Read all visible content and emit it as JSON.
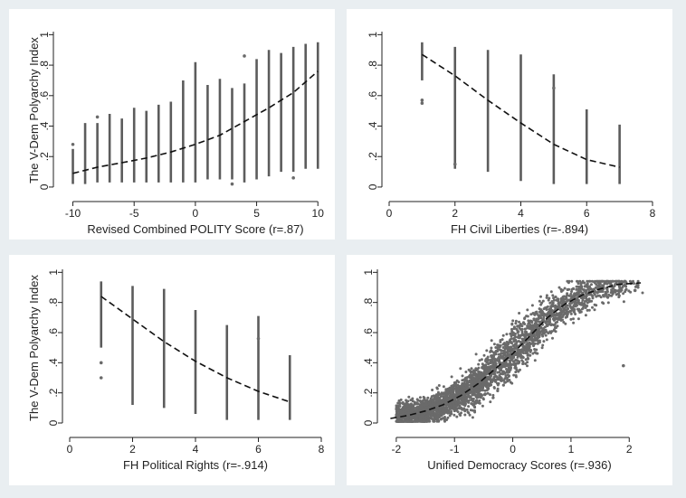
{
  "chart_data": [
    {
      "type": "scatter",
      "id": "polity",
      "xlabel": "Revised Combined POLITY Score (r=.87)",
      "ylabel": "The V-Dem Polyarchy Index",
      "xlim": [
        -11,
        10.5
      ],
      "ylim": [
        -0.03,
        1.02
      ],
      "xticks": [
        -10,
        -5,
        0,
        5,
        10
      ],
      "xtick_labels": [
        "-10",
        "-5",
        "0",
        "5",
        "10"
      ],
      "yticks": [
        0,
        0.2,
        0.4,
        0.6,
        0.8,
        1
      ],
      "ytick_labels": [
        "0",
        ".2",
        ".4",
        ".6",
        ".8",
        "1"
      ],
      "strips": [
        {
          "x": -10,
          "min": 0.02,
          "max": 0.25
        },
        {
          "x": -9,
          "min": 0.02,
          "max": 0.42
        },
        {
          "x": -8,
          "min": 0.03,
          "max": 0.42
        },
        {
          "x": -7,
          "min": 0.03,
          "max": 0.48
        },
        {
          "x": -6,
          "min": 0.03,
          "max": 0.45
        },
        {
          "x": -5,
          "min": 0.03,
          "max": 0.52
        },
        {
          "x": -4,
          "min": 0.03,
          "max": 0.5
        },
        {
          "x": -3,
          "min": 0.03,
          "max": 0.54
        },
        {
          "x": -2,
          "min": 0.03,
          "max": 0.56
        },
        {
          "x": -1,
          "min": 0.03,
          "max": 0.7
        },
        {
          "x": 0,
          "min": 0.03,
          "max": 0.82
        },
        {
          "x": 1,
          "min": 0.05,
          "max": 0.67
        },
        {
          "x": 2,
          "min": 0.05,
          "max": 0.71
        },
        {
          "x": 3,
          "min": 0.05,
          "max": 0.65
        },
        {
          "x": 4,
          "min": 0.03,
          "max": 0.68
        },
        {
          "x": 5,
          "min": 0.05,
          "max": 0.84
        },
        {
          "x": 6,
          "min": 0.07,
          "max": 0.9
        },
        {
          "x": 7,
          "min": 0.1,
          "max": 0.88
        },
        {
          "x": 8,
          "min": 0.1,
          "max": 0.92
        },
        {
          "x": 9,
          "min": 0.12,
          "max": 0.94
        },
        {
          "x": 10,
          "min": 0.12,
          "max": 0.95
        }
      ],
      "outliers": [
        [
          -10,
          0.28
        ],
        [
          -8,
          0.46
        ],
        [
          3,
          0.02
        ],
        [
          4,
          0.86
        ],
        [
          8,
          0.06
        ]
      ],
      "fit_line": [
        [
          -10,
          0.09
        ],
        [
          -8,
          0.13
        ],
        [
          -6,
          0.16
        ],
        [
          -4,
          0.19
        ],
        [
          -2,
          0.23
        ],
        [
          0,
          0.28
        ],
        [
          2,
          0.34
        ],
        [
          4,
          0.43
        ],
        [
          6,
          0.52
        ],
        [
          8,
          0.62
        ],
        [
          10,
          0.76
        ]
      ]
    },
    {
      "type": "scatter",
      "id": "fhcl",
      "xlabel": "FH Civil Liberties (r=-.894)",
      "ylabel": "",
      "xlim": [
        0,
        8
      ],
      "ylim": [
        -0.03,
        1.02
      ],
      "xticks": [
        0,
        2,
        4,
        6,
        8
      ],
      "xtick_labels": [
        "0",
        "2",
        "4",
        "6",
        "8"
      ],
      "yticks": [
        0,
        0.2,
        0.4,
        0.6,
        0.8,
        1
      ],
      "ytick_labels": [
        "0",
        ".2",
        ".4",
        ".6",
        ".8",
        "1"
      ],
      "strips": [
        {
          "x": 1,
          "min": 0.7,
          "max": 0.95
        },
        {
          "x": 2,
          "min": 0.12,
          "max": 0.92
        },
        {
          "x": 3,
          "min": 0.1,
          "max": 0.9
        },
        {
          "x": 4,
          "min": 0.04,
          "max": 0.87
        },
        {
          "x": 5,
          "min": 0.02,
          "max": 0.74
        },
        {
          "x": 6,
          "min": 0.02,
          "max": 0.51
        },
        {
          "x": 7,
          "min": 0.02,
          "max": 0.41
        }
      ],
      "outliers": [
        [
          1,
          0.55
        ],
        [
          1,
          0.57
        ],
        [
          2,
          0.15
        ],
        [
          5,
          0.65
        ]
      ],
      "fit_line": [
        [
          1,
          0.87
        ],
        [
          2,
          0.73
        ],
        [
          3,
          0.57
        ],
        [
          4,
          0.42
        ],
        [
          5,
          0.28
        ],
        [
          6,
          0.18
        ],
        [
          7,
          0.13
        ]
      ]
    },
    {
      "type": "scatter",
      "id": "fhpr",
      "xlabel": "FH Political Rights (r=-.914)",
      "ylabel": "The V-Dem Polyarchy Index",
      "xlim": [
        0,
        8
      ],
      "ylim": [
        -0.03,
        1.02
      ],
      "xticks": [
        0,
        2,
        4,
        6,
        8
      ],
      "xtick_labels": [
        "0",
        "2",
        "4",
        "6",
        "8"
      ],
      "yticks": [
        0,
        0.2,
        0.4,
        0.6,
        0.8,
        1
      ],
      "ytick_labels": [
        "0",
        ".2",
        ".4",
        ".6",
        ".8",
        "1"
      ],
      "strips": [
        {
          "x": 1,
          "min": 0.5,
          "max": 0.94
        },
        {
          "x": 2,
          "min": 0.12,
          "max": 0.91
        },
        {
          "x": 3,
          "min": 0.1,
          "max": 0.89
        },
        {
          "x": 4,
          "min": 0.06,
          "max": 0.75
        },
        {
          "x": 5,
          "min": 0.02,
          "max": 0.65
        },
        {
          "x": 6,
          "min": 0.02,
          "max": 0.71
        },
        {
          "x": 7,
          "min": 0.02,
          "max": 0.45
        }
      ],
      "outliers": [
        [
          1,
          0.3
        ],
        [
          1,
          0.4
        ],
        [
          6,
          0.56
        ]
      ],
      "fit_line": [
        [
          1,
          0.84
        ],
        [
          2,
          0.69
        ],
        [
          3,
          0.54
        ],
        [
          4,
          0.41
        ],
        [
          5,
          0.3
        ],
        [
          6,
          0.21
        ],
        [
          7,
          0.14
        ]
      ]
    },
    {
      "type": "scatter",
      "id": "uds",
      "xlabel": "Unified Democracy Scores (r=.936)",
      "ylabel": "",
      "xlim": [
        -2.2,
        2.4
      ],
      "ylim": [
        -0.03,
        1.02
      ],
      "xticks": [
        -2,
        -1,
        0,
        1,
        2
      ],
      "xtick_labels": [
        "-2",
        "-1",
        "0",
        "1",
        "2"
      ],
      "yticks": [
        0,
        0.2,
        0.4,
        0.6,
        0.8,
        1
      ],
      "ytick_labels": [
        "0",
        ".2",
        ".4",
        ".6",
        ".8",
        "1"
      ],
      "cloud_points": 3200,
      "outliers": [
        [
          1.9,
          0.38
        ],
        [
          -1.9,
          0.05
        ],
        [
          2.1,
          0.88
        ]
      ],
      "fit_line": [
        [
          -2.1,
          0.03
        ],
        [
          -1.8,
          0.05
        ],
        [
          -1.5,
          0.08
        ],
        [
          -1.2,
          0.12
        ],
        [
          -0.9,
          0.18
        ],
        [
          -0.6,
          0.26
        ],
        [
          -0.3,
          0.36
        ],
        [
          0,
          0.46
        ],
        [
          0.3,
          0.58
        ],
        [
          0.6,
          0.7
        ],
        [
          0.9,
          0.79
        ],
        [
          1.2,
          0.85
        ],
        [
          1.5,
          0.89
        ],
        [
          1.8,
          0.92
        ],
        [
          2.2,
          0.93
        ]
      ]
    }
  ]
}
